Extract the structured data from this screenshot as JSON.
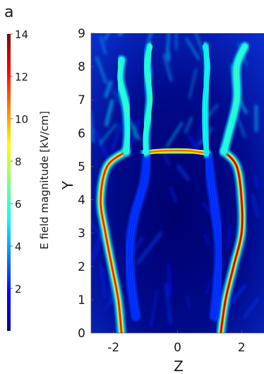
{
  "panel_label": "a",
  "chart_data": {
    "type": "heatmap",
    "title": "",
    "xlabel": "Z",
    "ylabel": "Y",
    "xlim": [
      -2.7,
      2.7
    ],
    "ylim": [
      0,
      9
    ],
    "x_ticks": [
      -2,
      0,
      2
    ],
    "y_ticks": [
      0,
      1,
      2,
      3,
      4,
      5,
      6,
      7,
      8,
      9
    ],
    "colormap": "jet",
    "colorbar": {
      "label": "E field magnitude  [kV/cm]",
      "range": [
        0,
        14
      ],
      "ticks": [
        2,
        4,
        6,
        8,
        10,
        12,
        14
      ]
    },
    "features": [
      {
        "name": "outer-contour-left",
        "points": [
          [
            -1.75,
            0
          ],
          [
            -1.85,
            1.0
          ],
          [
            -2.05,
            2.0
          ],
          [
            -2.25,
            3.0
          ],
          [
            -2.4,
            4.0
          ],
          [
            -2.2,
            5.0
          ],
          [
            -1.6,
            5.45
          ]
        ],
        "peak": 12
      },
      {
        "name": "outer-contour-right",
        "points": [
          [
            1.35,
            0
          ],
          [
            1.5,
            1.0
          ],
          [
            1.75,
            2.0
          ],
          [
            2.0,
            3.0
          ],
          [
            2.0,
            4.0
          ],
          [
            1.85,
            5.0
          ],
          [
            1.45,
            5.45
          ]
        ],
        "peak": 13
      },
      {
        "name": "inner-contour-left",
        "points": [
          [
            -0.95,
            5.3
          ],
          [
            -1.05,
            4.5
          ],
          [
            -1.35,
            3.5
          ],
          [
            -1.5,
            2.5
          ],
          [
            -1.45,
            1.5
          ],
          [
            -1.3,
            0.5
          ]
        ],
        "peak": 2.5
      },
      {
        "name": "inner-contour-right",
        "points": [
          [
            0.95,
            5.3
          ],
          [
            1.05,
            4.5
          ],
          [
            1.2,
            3.5
          ],
          [
            1.3,
            2.5
          ],
          [
            1.25,
            1.5
          ],
          [
            1.15,
            0.5
          ]
        ],
        "peak": 2.5
      },
      {
        "name": "top-bar",
        "points": [
          [
            -1.0,
            5.42
          ],
          [
            -0.4,
            5.47
          ],
          [
            0.3,
            5.47
          ],
          [
            0.9,
            5.4
          ]
        ],
        "peak": 11
      },
      {
        "name": "left-arm",
        "points": [
          [
            -1.6,
            5.45
          ],
          [
            -1.55,
            6.0
          ],
          [
            -1.6,
            6.8
          ],
          [
            -1.8,
            7.6
          ],
          [
            -1.75,
            8.2
          ]
        ],
        "peak": 6
      },
      {
        "name": "center-left-arm",
        "points": [
          [
            -1.0,
            5.42
          ],
          [
            -1.0,
            6.0
          ],
          [
            -0.85,
            7.0
          ],
          [
            -0.95,
            8.0
          ],
          [
            -0.85,
            8.6
          ]
        ],
        "peak": 6
      },
      {
        "name": "center-right-arm",
        "points": [
          [
            0.9,
            5.4
          ],
          [
            0.85,
            6.0
          ],
          [
            0.85,
            7.0
          ],
          [
            0.95,
            8.0
          ],
          [
            0.85,
            8.6
          ]
        ],
        "peak": 5.5
      },
      {
        "name": "right-arm",
        "points": [
          [
            1.45,
            5.45
          ],
          [
            1.6,
            6.0
          ],
          [
            1.85,
            7.0
          ],
          [
            1.85,
            8.0
          ],
          [
            2.1,
            8.6
          ]
        ],
        "peak": 6
      }
    ]
  }
}
